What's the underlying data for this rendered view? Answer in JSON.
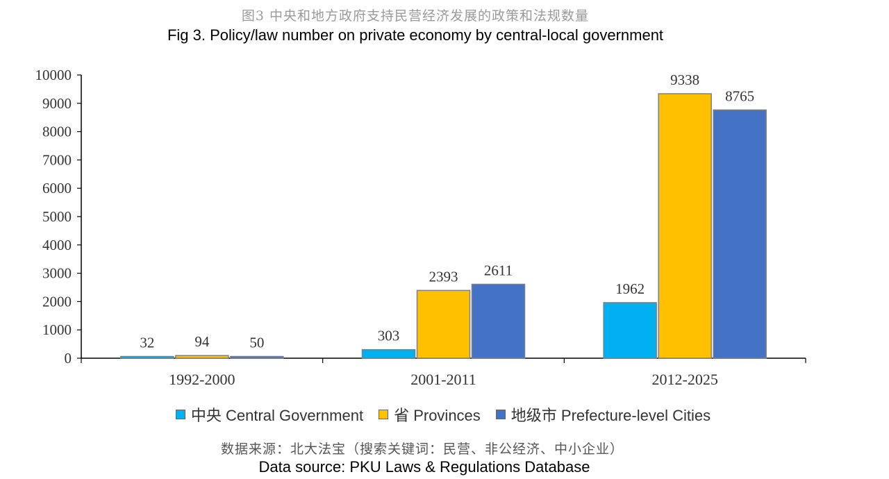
{
  "title_cn": "图3 中央和地方政府支持民营经济发展的政策和法规数量",
  "title_en": "Fig 3. Policy/law number on private economy by central-local government",
  "source_cn": "数据来源：北大法宝（搜索关键词：民营、非公经济、中小企业）",
  "source_en": "Data source: PKU Laws & Regulations Database",
  "legend": [
    {
      "label": "中央 Central Government",
      "color": "#00b0f0"
    },
    {
      "label": "省 Provinces",
      "color": "#ffc000"
    },
    {
      "label": "地级市 Prefecture-level Cities",
      "color": "#4472c4"
    }
  ],
  "chart_data": {
    "type": "bar",
    "title": "Fig 3. Policy/law number on private economy by central-local government",
    "categories": [
      "1992-2000",
      "2001-2011",
      "2012-2025"
    ],
    "series": [
      {
        "name": "中央 Central Government",
        "values": [
          32,
          303,
          1962
        ],
        "color": "#00b0f0"
      },
      {
        "name": "省 Provinces",
        "values": [
          94,
          2393,
          9338
        ],
        "color": "#ffc000"
      },
      {
        "name": "地级市 Prefecture-level Cities",
        "values": [
          50,
          2611,
          8765
        ],
        "color": "#4472c4"
      }
    ],
    "ylim": [
      0,
      10000
    ],
    "yticks": [
      0,
      1000,
      2000,
      3000,
      4000,
      5000,
      6000,
      7000,
      8000,
      9000,
      10000
    ],
    "grid": false,
    "legend_position": "bottom"
  }
}
